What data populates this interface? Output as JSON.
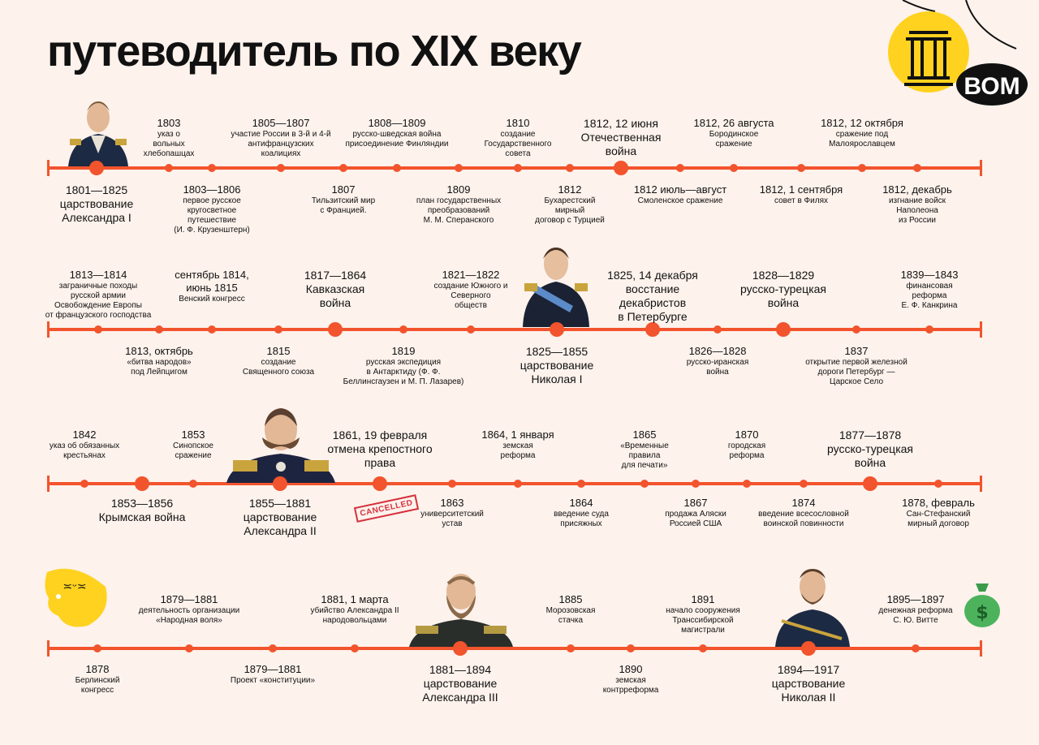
{
  "title": "путеводитель по XIX веку",
  "logo": {
    "text": "ВОМ"
  },
  "stamp": {
    "text": "CANCELLED"
  },
  "rows": [
    {
      "events": [
        {
          "date": "1803",
          "text": "указ о\nвольных\nхлебопашцах"
        },
        {
          "date": "1805—1807",
          "text": "участие России в 3-й и 4-й\nантифранцузских\nкоалициях"
        },
        {
          "date": "1808—1809",
          "text": "русско-шведская война\nприсоединение Финляндии"
        },
        {
          "date": "1810",
          "text": "создание\nГосударственного\nсовета"
        },
        {
          "date": "1812, 12 июня",
          "text": "Отечественная\nвойна"
        },
        {
          "date": "1812, 26 августа",
          "text": "Бородинское\nсражение"
        },
        {
          "date": "1812, 12 октября",
          "text": "сражение под\nМалоярославцем"
        },
        {
          "date": "1801—1825",
          "text": "царствование\nАлександра I"
        },
        {
          "date": "1803—1806",
          "text": "первое русское\nкругосветное\nпутешествие\n(И. Ф. Крузенштерн)"
        },
        {
          "date": "1807",
          "text": "Тильзитский мир\nс Францией."
        },
        {
          "date": "1809",
          "text": "план государственных\nпреобразований\nМ. М. Сперанского"
        },
        {
          "date": "1812",
          "text": "Бухарестский\nмирный\nдоговор с Турцией"
        },
        {
          "date": "1812 июль—август",
          "text": "Смоленское сражение"
        },
        {
          "date": "1812, 1 сентября",
          "text": "совет в Филях"
        },
        {
          "date": "1812, декабрь",
          "text": "изгнание войск\nНаполеона\nиз России"
        }
      ]
    },
    {
      "events": [
        {
          "date": "1813—1814",
          "text": "заграничные походы\nрусской армии\nОсвобождение Европы\nот французского господства"
        },
        {
          "date": "сентябрь 1814,\nиюнь 1815",
          "text": "Венский конгресс"
        },
        {
          "date": "1817—1864",
          "text": "Кавказская\nвойна"
        },
        {
          "date": "1821—1822",
          "text": "создание Южного и\nСеверного\nобществ"
        },
        {
          "date": "1825, 14 декабря",
          "text": "восстание\nдекабристов\nв Петербурге"
        },
        {
          "date": "1828—1829",
          "text": "русско-турецкая\nвойна"
        },
        {
          "date": "1839—1843",
          "text": "финансовая\nреформа\nЕ. Ф. Канкрина"
        },
        {
          "date": "1813, октябрь",
          "text": "«битва народов»\nпод Лейпцигом"
        },
        {
          "date": "1815",
          "text": "создание\nСвященного союза"
        },
        {
          "date": "1819",
          "text": "русская экспедиция\nв Антарктиду (Ф. Ф.\nБеллинсгаузен и М. П. Лазарев)"
        },
        {
          "date": "1825—1855",
          "text": "царствование\nНиколая I"
        },
        {
          "date": "1826—1828",
          "text": "русско-иранская\nвойна"
        },
        {
          "date": "1837",
          "text": "открытие первой железной\nдороги Петербург —\nЦарское Село"
        }
      ]
    },
    {
      "events": [
        {
          "date": "1842",
          "text": "указ об обязанных\nкрестьянах"
        },
        {
          "date": "1853",
          "text": "Синопское\nсражение"
        },
        {
          "date": "1861, 19 февраля",
          "text": "отмена крепостного\nправа"
        },
        {
          "date": "1864, 1 января",
          "text": "земская\nреформа"
        },
        {
          "date": "1865",
          "text": "«Временные\nправила\nдля печати»"
        },
        {
          "date": "1870",
          "text": "городская\nреформа"
        },
        {
          "date": "1877—1878",
          "text": "русско-турецкая\nвойна"
        },
        {
          "date": "1853—1856",
          "text": "Крымская война"
        },
        {
          "date": "1855—1881",
          "text": "царствование\nАлександра II"
        },
        {
          "date": "1863",
          "text": "университетский\nустав"
        },
        {
          "date": "1864",
          "text": "введение суда\nприсяжных"
        },
        {
          "date": "1867",
          "text": "продажа Аляски\nРоссией США"
        },
        {
          "date": "1874",
          "text": "введение всесословной\nвоинской повинности"
        },
        {
          "date": "1878, февраль",
          "text": "Сан-Стефанский\nмирный договор"
        }
      ]
    },
    {
      "events": [
        {
          "date": "1879—1881",
          "text": "деятельность организации\n«Народная воля»"
        },
        {
          "date": "1881, 1 марта",
          "text": "убийство Александра II\nнародовольцами"
        },
        {
          "date": "1885",
          "text": "Морозовская\nстачка"
        },
        {
          "date": "1891",
          "text": "начало сооружения\nТранссибирской\nмагистрали"
        },
        {
          "date": "1895—1897",
          "text": "денежная реформа\nС. Ю. Витте"
        },
        {
          "date": "1878",
          "text": "Берлинский\nконгресс"
        },
        {
          "date": "1879—1881",
          "text": "Проект «конституции»"
        },
        {
          "date": "1881—1894",
          "text": "царствование\nАлександра III"
        },
        {
          "date": "1890",
          "text": "земская\nконтрреформа"
        },
        {
          "date": "1894—1917",
          "text": "царствование\nНиколая II"
        }
      ]
    }
  ]
}
